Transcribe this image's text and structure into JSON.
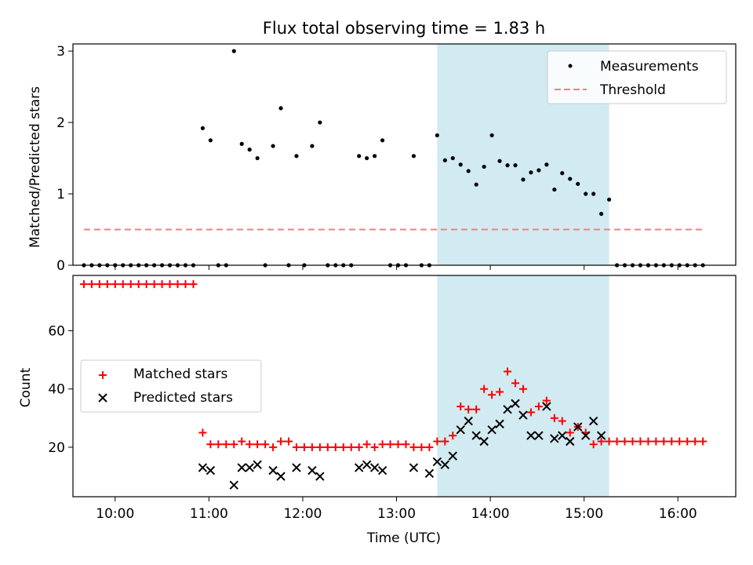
{
  "chart_data": [
    {
      "type": "scatter",
      "title": "Flux total observing time = 1.83 h",
      "ylabel": "Matched/Predicted stars",
      "xlabel": "",
      "ylim": [
        0,
        3.1
      ],
      "yticks": [
        0,
        1,
        2,
        3
      ],
      "xrange": [
        "09:33",
        "16:37"
      ],
      "highlight_span": [
        "13:26",
        "15:16"
      ],
      "highlight_color": "#add8e6",
      "threshold": 0.5,
      "threshold_xrange": [
        "09:40",
        "16:17"
      ],
      "legend_position": "top-right",
      "series": [
        {
          "name": "Measurements",
          "color": "#000000",
          "marker": "dot",
          "points": [
            [
              "09:40",
              0
            ],
            [
              "09:45",
              0
            ],
            [
              "09:50",
              0
            ],
            [
              "09:55",
              0
            ],
            [
              "10:00",
              0
            ],
            [
              "10:05",
              0
            ],
            [
              "10:10",
              0
            ],
            [
              "10:15",
              0
            ],
            [
              "10:20",
              0
            ],
            [
              "10:25",
              0
            ],
            [
              "10:30",
              0
            ],
            [
              "10:35",
              0
            ],
            [
              "10:40",
              0
            ],
            [
              "10:45",
              0
            ],
            [
              "10:50",
              0
            ],
            [
              "10:56",
              1.92
            ],
            [
              "11:01",
              1.75
            ],
            [
              "11:06",
              0
            ],
            [
              "11:11",
              0
            ],
            [
              "11:16",
              3.0
            ],
            [
              "11:21",
              1.7
            ],
            [
              "11:26",
              1.62
            ],
            [
              "11:31",
              1.5
            ],
            [
              "11:36",
              0
            ],
            [
              "11:41",
              1.67
            ],
            [
              "11:46",
              2.2
            ],
            [
              "11:51",
              0
            ],
            [
              "11:56",
              1.53
            ],
            [
              "12:01",
              0
            ],
            [
              "12:06",
              1.67
            ],
            [
              "12:11",
              2.0
            ],
            [
              "12:16",
              0
            ],
            [
              "12:21",
              0
            ],
            [
              "12:26",
              0
            ],
            [
              "12:31",
              0
            ],
            [
              "12:36",
              1.53
            ],
            [
              "12:41",
              1.5
            ],
            [
              "12:46",
              1.53
            ],
            [
              "12:51",
              1.75
            ],
            [
              "12:56",
              0
            ],
            [
              "13:01",
              0
            ],
            [
              "13:06",
              0
            ],
            [
              "13:11",
              1.53
            ],
            [
              "13:16",
              0
            ],
            [
              "13:21",
              0
            ],
            [
              "13:26",
              1.82
            ],
            [
              "13:31",
              1.47
            ],
            [
              "13:36",
              1.5
            ],
            [
              "13:41",
              1.41
            ],
            [
              "13:46",
              1.32
            ],
            [
              "13:51",
              1.13
            ],
            [
              "13:56",
              1.38
            ],
            [
              "14:01",
              1.82
            ],
            [
              "14:06",
              1.46
            ],
            [
              "14:11",
              1.4
            ],
            [
              "14:16",
              1.4
            ],
            [
              "14:21",
              1.2
            ],
            [
              "14:26",
              1.3
            ],
            [
              "14:31",
              1.33
            ],
            [
              "14:36",
              1.41
            ],
            [
              "14:41",
              1.06
            ],
            [
              "14:46",
              1.29
            ],
            [
              "14:51",
              1.21
            ],
            [
              "14:56",
              1.14
            ],
            [
              "15:01",
              1.0
            ],
            [
              "15:06",
              1.0
            ],
            [
              "15:11",
              0.72
            ],
            [
              "15:16",
              0.92
            ],
            [
              "15:21",
              0
            ],
            [
              "15:26",
              0
            ],
            [
              "15:31",
              0
            ],
            [
              "15:36",
              0
            ],
            [
              "15:41",
              0
            ],
            [
              "15:46",
              0
            ],
            [
              "15:51",
              0
            ],
            [
              "15:56",
              0
            ],
            [
              "16:01",
              0
            ],
            [
              "16:06",
              0
            ],
            [
              "16:11",
              0
            ],
            [
              "16:16",
              0
            ]
          ]
        },
        {
          "name": "Threshold",
          "color": "#f08080",
          "style": "dashed",
          "points": [
            [
              "09:40",
              0.5
            ],
            [
              "16:17",
              0.5
            ]
          ]
        }
      ]
    },
    {
      "type": "scatter",
      "title": "",
      "xlabel": "Time (UTC)",
      "ylabel": "Count",
      "ylim": [
        3,
        79
      ],
      "yticks": [
        20,
        40,
        60
      ],
      "xticks": [
        "10:00",
        "11:00",
        "12:00",
        "13:00",
        "14:00",
        "15:00",
        "16:00"
      ],
      "xrange": [
        "09:33",
        "16:37"
      ],
      "highlight_span": [
        "13:26",
        "15:16"
      ],
      "highlight_color": "#add8e6",
      "legend_position": "center-left",
      "series": [
        {
          "name": "Matched stars",
          "color": "#ff0000",
          "marker": "plus",
          "points": [
            [
              "09:40",
              76
            ],
            [
              "09:45",
              76
            ],
            [
              "09:50",
              76
            ],
            [
              "09:55",
              76
            ],
            [
              "10:00",
              76
            ],
            [
              "10:05",
              76
            ],
            [
              "10:10",
              76
            ],
            [
              "10:15",
              76
            ],
            [
              "10:20",
              76
            ],
            [
              "10:25",
              76
            ],
            [
              "10:30",
              76
            ],
            [
              "10:35",
              76
            ],
            [
              "10:40",
              76
            ],
            [
              "10:45",
              76
            ],
            [
              "10:50",
              76
            ],
            [
              "10:56",
              25
            ],
            [
              "11:01",
              21
            ],
            [
              "11:06",
              21
            ],
            [
              "11:11",
              21
            ],
            [
              "11:16",
              21
            ],
            [
              "11:21",
              22
            ],
            [
              "11:26",
              21
            ],
            [
              "11:31",
              21
            ],
            [
              "11:36",
              21
            ],
            [
              "11:41",
              20
            ],
            [
              "11:46",
              22
            ],
            [
              "11:51",
              22
            ],
            [
              "11:56",
              20
            ],
            [
              "12:01",
              20
            ],
            [
              "12:06",
              20
            ],
            [
              "12:11",
              20
            ],
            [
              "12:16",
              20
            ],
            [
              "12:21",
              20
            ],
            [
              "12:26",
              20
            ],
            [
              "12:31",
              20
            ],
            [
              "12:36",
              20
            ],
            [
              "12:41",
              21
            ],
            [
              "12:46",
              20
            ],
            [
              "12:51",
              21
            ],
            [
              "12:56",
              21
            ],
            [
              "13:01",
              21
            ],
            [
              "13:06",
              21
            ],
            [
              "13:11",
              20
            ],
            [
              "13:16",
              20
            ],
            [
              "13:21",
              20
            ],
            [
              "13:26",
              22
            ],
            [
              "13:31",
              22
            ],
            [
              "13:36",
              24
            ],
            [
              "13:41",
              34
            ],
            [
              "13:46",
              33
            ],
            [
              "13:51",
              33
            ],
            [
              "13:56",
              40
            ],
            [
              "14:01",
              38
            ],
            [
              "14:06",
              39
            ],
            [
              "14:11",
              46
            ],
            [
              "14:16",
              42
            ],
            [
              "14:21",
              40
            ],
            [
              "14:26",
              32
            ],
            [
              "14:31",
              34
            ],
            [
              "14:36",
              36
            ],
            [
              "14:41",
              30
            ],
            [
              "14:46",
              29
            ],
            [
              "14:51",
              25
            ],
            [
              "14:56",
              27
            ],
            [
              "15:01",
              25
            ],
            [
              "15:06",
              21
            ],
            [
              "15:11",
              22
            ],
            [
              "15:16",
              22
            ],
            [
              "15:21",
              22
            ],
            [
              "15:26",
              22
            ],
            [
              "15:31",
              22
            ],
            [
              "15:36",
              22
            ],
            [
              "15:41",
              22
            ],
            [
              "15:46",
              22
            ],
            [
              "15:51",
              22
            ],
            [
              "15:56",
              22
            ],
            [
              "16:01",
              22
            ],
            [
              "16:06",
              22
            ],
            [
              "16:11",
              22
            ],
            [
              "16:16",
              22
            ]
          ]
        },
        {
          "name": "Predicted stars",
          "color": "#000000",
          "marker": "x",
          "points": [
            [
              "10:56",
              13
            ],
            [
              "11:01",
              12
            ],
            [
              "11:16",
              7
            ],
            [
              "11:21",
              13
            ],
            [
              "11:26",
              13
            ],
            [
              "11:31",
              14
            ],
            [
              "11:41",
              12
            ],
            [
              "11:46",
              10
            ],
            [
              "11:56",
              13
            ],
            [
              "12:06",
              12
            ],
            [
              "12:11",
              10
            ],
            [
              "12:36",
              13
            ],
            [
              "12:41",
              14
            ],
            [
              "12:46",
              13
            ],
            [
              "12:51",
              12
            ],
            [
              "13:11",
              13
            ],
            [
              "13:21",
              11
            ],
            [
              "13:26",
              15
            ],
            [
              "13:31",
              14
            ],
            [
              "13:36",
              17
            ],
            [
              "13:41",
              26
            ],
            [
              "13:46",
              29
            ],
            [
              "13:51",
              24
            ],
            [
              "13:56",
              22
            ],
            [
              "14:01",
              26
            ],
            [
              "14:06",
              28
            ],
            [
              "14:11",
              33
            ],
            [
              "14:16",
              35
            ],
            [
              "14:21",
              31
            ],
            [
              "14:26",
              24
            ],
            [
              "14:31",
              24
            ],
            [
              "14:36",
              34
            ],
            [
              "14:41",
              23
            ],
            [
              "14:46",
              24
            ],
            [
              "14:51",
              22
            ],
            [
              "14:56",
              27
            ],
            [
              "15:01",
              24
            ],
            [
              "15:06",
              29
            ],
            [
              "15:11",
              24
            ]
          ]
        }
      ]
    }
  ]
}
